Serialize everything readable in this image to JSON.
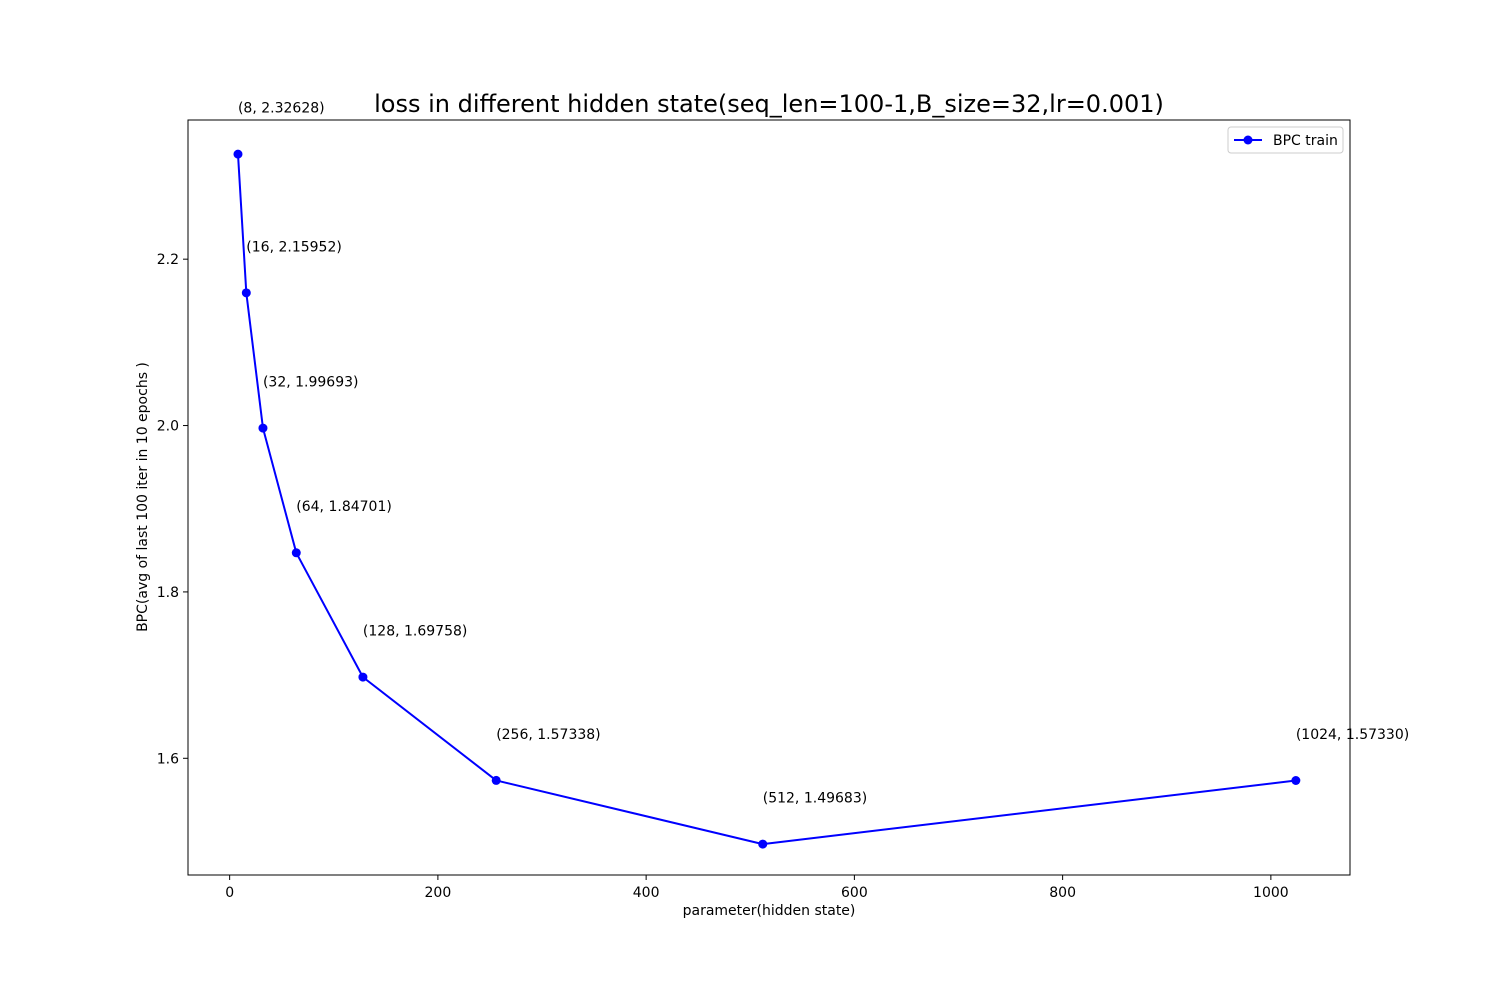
{
  "chart_data": {
    "type": "line",
    "title": "loss in different hidden state(seq_len=100-1,B_size=32,lr=0.001)",
    "xlabel": "parameter(hidden state)",
    "ylabel": "BPC(avg of last 100 iter in 10 epochs )",
    "xlim": [
      -40,
      1076
    ],
    "ylim": [
      1.4597,
      2.3673
    ],
    "xticks": [
      0,
      200,
      400,
      600,
      800,
      1000
    ],
    "yticks": [
      1.6,
      1.8,
      2.0,
      2.2
    ],
    "xtick_labels": [
      "0",
      "200",
      "400",
      "600",
      "800",
      "1000"
    ],
    "ytick_labels": [
      "1.6",
      "1.8",
      "2.0",
      "2.2"
    ],
    "grid": false,
    "legend_position": "top-right",
    "series": [
      {
        "name": "BPC train",
        "color": "#0000ff",
        "marker": "circle",
        "x": [
          8,
          16,
          32,
          64,
          128,
          256,
          512,
          1024
        ],
        "y": [
          2.32628,
          2.15952,
          1.99693,
          1.84701,
          1.69758,
          1.57338,
          1.49683,
          1.5733
        ]
      }
    ],
    "annotations": [
      "(8, 2.32628)",
      "(16, 2.15952)",
      "(32, 1.99693)",
      "(64, 1.84701)",
      "(128, 1.69758)",
      "(256, 1.57338)",
      "(512, 1.49683)",
      "(1024, 1.57330)"
    ]
  }
}
